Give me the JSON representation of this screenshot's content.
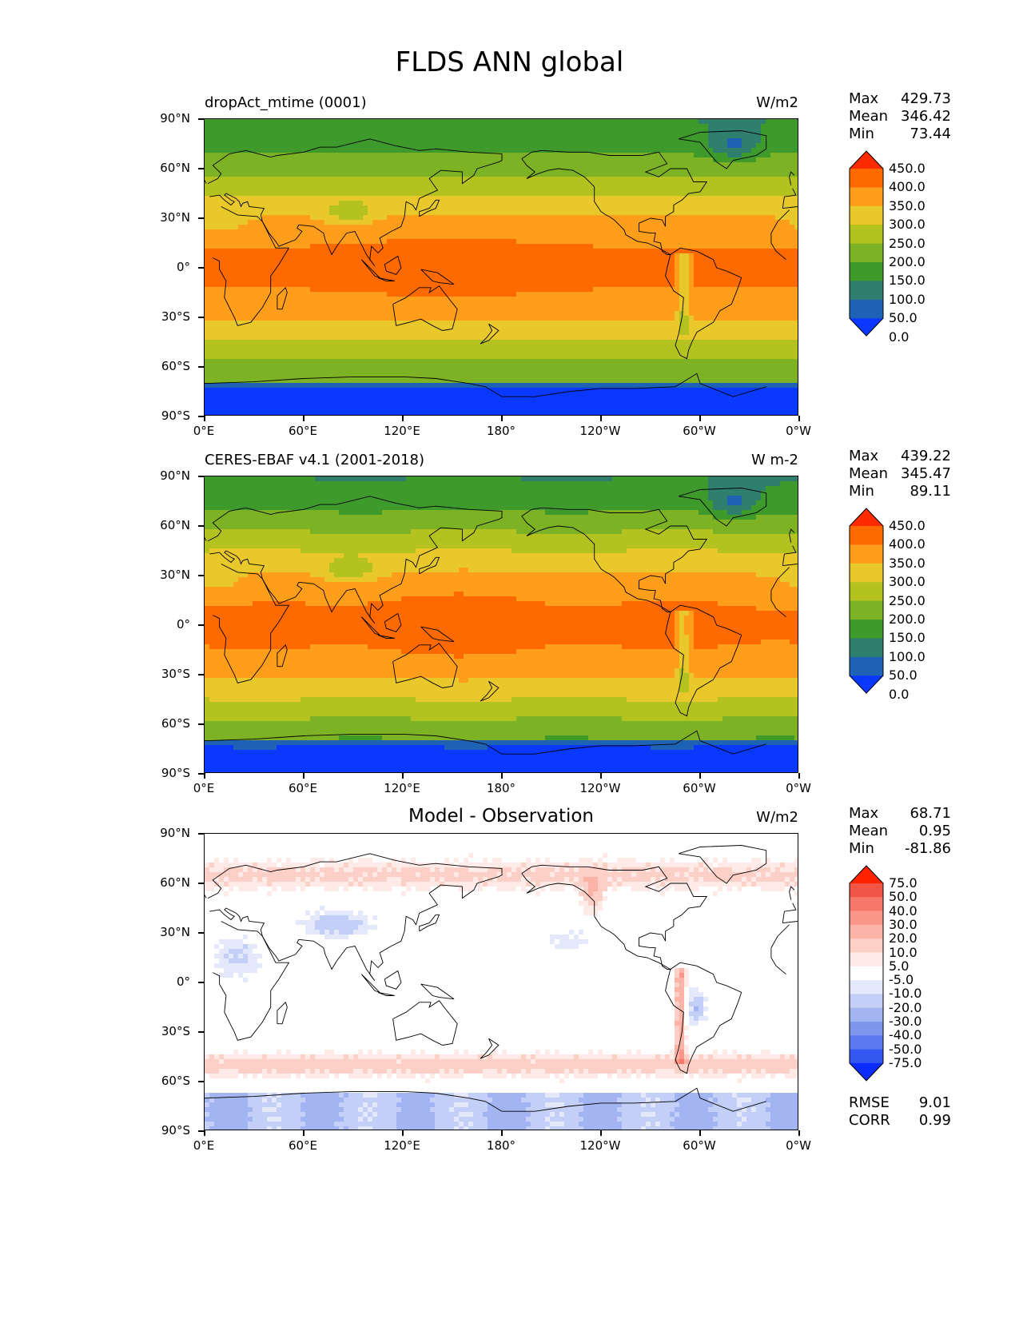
{
  "title": "FLDS ANN global",
  "panels": [
    {
      "id": "test",
      "title": "dropAct_mtime (0001)",
      "title_style": "left",
      "units": "W/m2",
      "stats": {
        "max_label": "Max",
        "max": "429.73",
        "mean_label": "Mean",
        "mean": "346.42",
        "min_label": "Min",
        "min": "73.44"
      }
    },
    {
      "id": "ref",
      "title": "CERES-EBAF v4.1 (2001-2018)",
      "title_style": "left",
      "units": "W m-2",
      "stats": {
        "max_label": "Max",
        "max": "439.22",
        "mean_label": "Mean",
        "mean": "345.47",
        "min_label": "Min",
        "min": "89.11"
      }
    },
    {
      "id": "diff",
      "title": "Model - Observation",
      "title_style": "center",
      "units": "W/m2",
      "stats": {
        "max_label": "Max",
        "max": "68.71",
        "mean_label": "Mean",
        "mean": "0.95",
        "min_label": "Min",
        "min": "-81.86"
      },
      "metrics": {
        "rmse_label": "RMSE",
        "rmse": "9.01",
        "corr_label": "CORR",
        "corr": "0.99"
      }
    }
  ],
  "axes": {
    "lat_ticks": [
      "90°N",
      "60°N",
      "30°N",
      "0°",
      "30°S",
      "60°S",
      "90°S"
    ],
    "lon_ticks": [
      "0°E",
      "60°E",
      "120°E",
      "180°",
      "120°W",
      "60°W",
      "0°W"
    ]
  },
  "colorbars": {
    "absolute": {
      "labels": [
        "450.0",
        "400.0",
        "350.0",
        "300.0",
        "250.0",
        "200.0",
        "150.0",
        "100.0",
        "50.0",
        "0.0"
      ],
      "colors": [
        "#ff2a00",
        "#ff6a00",
        "#ff9e1a",
        "#e8c82a",
        "#b3c21f",
        "#7db224",
        "#3d9a2b",
        "#2f7f6e",
        "#1d62b3",
        "#0a38ff"
      ]
    },
    "difference": {
      "labels": [
        "75.0",
        "50.0",
        "40.0",
        "30.0",
        "20.0",
        "10.0",
        "5.0",
        "-5.0",
        "-10.0",
        "-20.0",
        "-30.0",
        "-40.0",
        "-50.0",
        "-75.0"
      ],
      "colors": [
        "#ff2200",
        "#f05545",
        "#f7786a",
        "#f99688",
        "#fbb3a8",
        "#fdd0c7",
        "#feeae6",
        "#ffffff",
        "#e3e9fb",
        "#c3cff6",
        "#a2b4f1",
        "#7f96ee",
        "#5b7af0",
        "#3358f2",
        "#0a2cff"
      ]
    }
  }
}
